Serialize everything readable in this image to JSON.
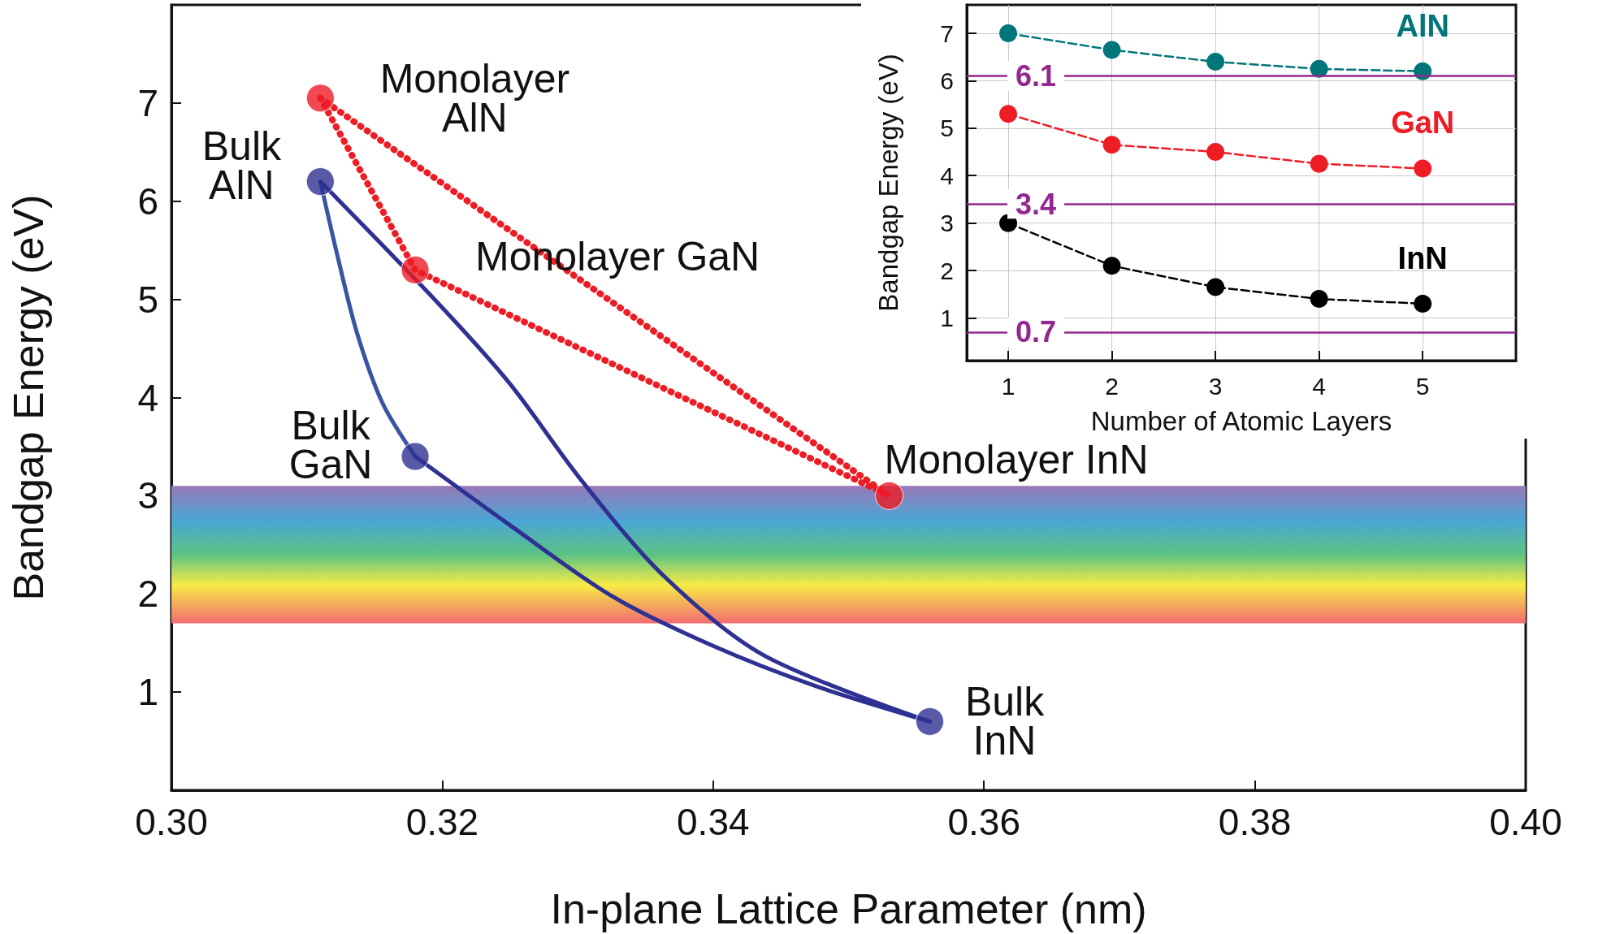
{
  "chart_data": [
    {
      "type": "scatter",
      "xlabel": "In-plane Lattice Parameter (nm)",
      "ylabel": "Bandgap Energy (eV)",
      "xlim": [
        0.3,
        0.4
      ],
      "xticks": [
        {
          "value": 0.3,
          "label": "0.30"
        },
        {
          "value": 0.32,
          "label": "0.32"
        },
        {
          "value": 0.34,
          "label": "0.34"
        },
        {
          "value": 0.36,
          "label": "0.36"
        },
        {
          "value": 0.38,
          "label": "0.38"
        },
        {
          "value": 0.4,
          "label": "0.40"
        }
      ],
      "ylim": [
        0,
        8
      ],
      "yticks": [
        1,
        2,
        3,
        4,
        5,
        6,
        7
      ],
      "grid": false,
      "legend": false,
      "bands": [
        {
          "axis": "y",
          "from": 1.7,
          "to": 3.1
        }
      ],
      "series": [
        {
          "type": "line",
          "color": "#ee1c25",
          "line_style": "dotted",
          "marker": "none",
          "x": [
            0.311,
            0.318,
            0.353
          ],
          "values": [
            7.05,
            5.3,
            3.0
          ]
        },
        {
          "type": "line",
          "color": "#ee1c25",
          "line_style": "dotted",
          "marker": "none",
          "x": [
            0.311,
            0.353
          ],
          "values": [
            7.05,
            3.0
          ]
        },
        {
          "type": "line",
          "color": "#3a54a4",
          "line_style": "solid",
          "marker": "none",
          "x": [
            0.311,
            0.3122,
            0.3137,
            0.3156,
            0.318
          ],
          "values": [
            6.2,
            5.48,
            4.66,
            3.94,
            3.4
          ]
        },
        {
          "type": "line",
          "color": "#2e3192",
          "line_style": "solid",
          "marker": "none",
          "x": [
            0.318,
            0.325,
            0.3325,
            0.34,
            0.3476,
            0.356
          ],
          "values": [
            3.4,
            2.7,
            1.98,
            1.47,
            1.06,
            0.7
          ]
        },
        {
          "type": "line",
          "color": "#2e3192",
          "line_style": "solid",
          "marker": "none",
          "x": [
            0.311,
            0.3197,
            0.325,
            0.3302,
            0.3363,
            0.3438,
            0.356
          ],
          "values": [
            6.2,
            4.96,
            4.14,
            3.17,
            2.19,
            1.37,
            0.7
          ]
        },
        {
          "color": "#ee1c25",
          "marker": "circle",
          "x": [
            0.311,
            0.318,
            0.353
          ],
          "values": [
            7.05,
            5.3,
            3.0
          ]
        },
        {
          "color": "#2e3192",
          "marker": "circle",
          "x": [
            0.311,
            0.318,
            0.356
          ],
          "values": [
            6.2,
            3.4,
            0.7
          ]
        }
      ],
      "annotations": [
        {
          "text": "Monolayer AlN",
          "x": 0.311,
          "y": 7.05
        },
        {
          "text": "Bulk AlN",
          "x": 0.311,
          "y": 6.2
        },
        {
          "text": "Monolayer GaN",
          "x": 0.318,
          "y": 5.3
        },
        {
          "text": "Bulk GaN",
          "x": 0.318,
          "y": 3.4
        },
        {
          "text": "Monolayer InN",
          "x": 0.353,
          "y": 3.0
        },
        {
          "text": "Bulk InN",
          "x": 0.356,
          "y": 0.7
        }
      ]
    },
    {
      "type": "line",
      "xlabel": "Number of Atomic Layers",
      "ylabel": "Bandgap Energy (eV)",
      "xlim": [
        0.6,
        5.9
      ],
      "xticks": [
        1,
        2,
        3,
        4,
        5
      ],
      "ylim": [
        0.1,
        7.6
      ],
      "yticks": [
        1,
        2,
        3,
        4,
        5,
        6,
        7
      ],
      "grid": true,
      "legend": false,
      "marker": "circle",
      "line_style": "dashed",
      "x": [
        1,
        2,
        3,
        4,
        5
      ],
      "ref_lines": [
        {
          "axis": "y",
          "value": 6.1,
          "label": "6.1",
          "color": "#93278f"
        },
        {
          "axis": "y",
          "value": 3.4,
          "label": "3.4",
          "color": "#93278f"
        },
        {
          "axis": "y",
          "value": 0.7,
          "label": "0.7",
          "color": "#93278f"
        }
      ],
      "series": [
        {
          "name": "AlN",
          "color": "#00757a",
          "values": [
            7.0,
            6.65,
            6.4,
            6.25,
            6.2
          ]
        },
        {
          "name": "GaN",
          "color": "#ee1c25",
          "values": [
            5.3,
            4.65,
            4.5,
            4.25,
            4.15
          ]
        },
        {
          "name": "InN",
          "color": "#000000",
          "values": [
            3.0,
            2.1,
            1.65,
            1.4,
            1.3
          ]
        }
      ]
    }
  ]
}
